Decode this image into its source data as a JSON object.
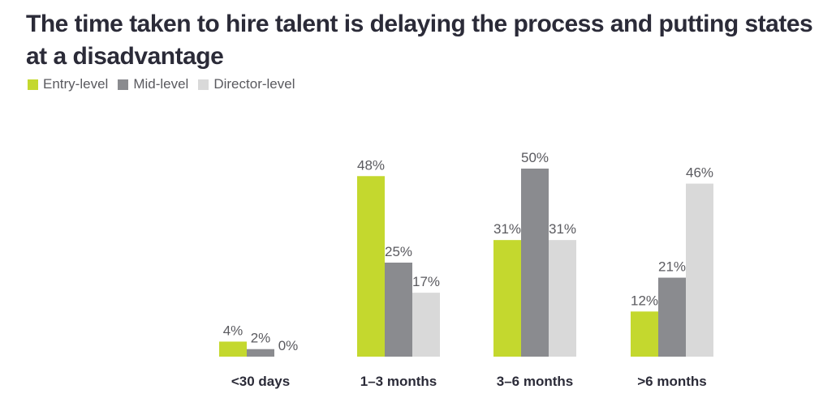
{
  "chart_data": {
    "type": "bar",
    "title": "The time taken to hire talent is delaying the process and putting states at a disadvantage",
    "categories": [
      "<30 days",
      "1–3 months",
      "3–6 months",
      ">6 months"
    ],
    "series": [
      {
        "name": "Entry-level",
        "values": [
          4,
          48,
          31,
          12
        ],
        "color": "#c4d82e"
      },
      {
        "name": "Mid-level",
        "values": [
          2,
          25,
          50,
          21
        ],
        "color": "#8a8b8f"
      },
      {
        "name": "Director-level",
        "values": [
          0,
          17,
          31,
          46
        ],
        "color": "#d9d9d9"
      }
    ],
    "value_suffix": "%",
    "ylim": [
      0,
      50
    ],
    "grid": false,
    "legend_position": "top-left"
  }
}
